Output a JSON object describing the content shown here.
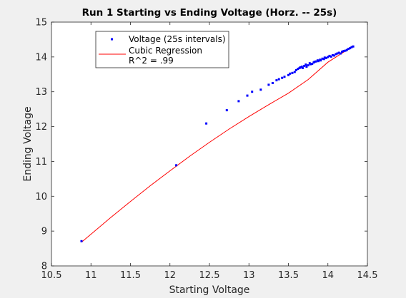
{
  "chart_data": {
    "type": "scatter",
    "title": "Run 1 Starting vs Ending Voltage (Horz. -- 25s)",
    "xlabel": "Starting Voltage",
    "ylabel": "Ending Voltage",
    "xlim": [
      10.5,
      14.5
    ],
    "ylim": [
      8,
      15
    ],
    "xticks": [
      10.5,
      11,
      11.5,
      12,
      12.5,
      13,
      13.5,
      14,
      14.5
    ],
    "yticks": [
      8,
      9,
      10,
      11,
      12,
      13,
      14,
      15
    ],
    "grid": false,
    "legend_position": "top-left",
    "series": [
      {
        "name": "Voltage (25s intervals)",
        "kind": "scatter",
        "color": "#0000ff",
        "x": [
          10.88,
          12.08,
          12.46,
          12.72,
          12.87,
          12.98,
          13.04,
          13.15,
          13.25,
          13.3,
          13.35,
          13.38,
          13.42,
          13.45,
          13.5,
          13.52,
          13.55,
          13.58,
          13.6,
          13.62,
          13.64,
          13.65,
          13.67,
          13.68,
          13.7,
          13.72,
          13.73,
          13.75,
          13.77,
          13.78,
          13.8,
          13.82,
          13.83,
          13.85,
          13.87,
          13.88,
          13.9,
          13.91,
          13.93,
          13.95,
          13.96,
          13.98,
          14.0,
          14.02,
          14.04,
          14.06,
          14.08,
          14.1,
          14.12,
          14.14,
          14.16,
          14.18,
          14.2,
          14.22,
          14.24,
          14.26,
          14.28,
          14.3,
          14.32
        ],
        "y": [
          8.71,
          10.89,
          12.09,
          12.47,
          12.73,
          12.89,
          13.0,
          13.06,
          13.2,
          13.25,
          13.33,
          13.36,
          13.4,
          13.43,
          13.48,
          13.52,
          13.54,
          13.57,
          13.62,
          13.66,
          13.68,
          13.7,
          13.72,
          13.68,
          13.74,
          13.78,
          13.72,
          13.76,
          13.82,
          13.79,
          13.8,
          13.84,
          13.86,
          13.87,
          13.9,
          13.88,
          13.92,
          13.9,
          13.95,
          13.94,
          13.98,
          13.97,
          14.0,
          14.03,
          14.01,
          14.05,
          14.04,
          14.08,
          14.1,
          14.12,
          14.1,
          14.15,
          14.17,
          14.18,
          14.2,
          14.23,
          14.25,
          14.28,
          14.3
        ]
      },
      {
        "name": "Cubic Regression",
        "kind": "line",
        "color": "#ff0000",
        "x": [
          10.88,
          11.0,
          11.25,
          11.5,
          11.75,
          12.0,
          12.25,
          12.5,
          12.75,
          13.0,
          13.25,
          13.5,
          13.75,
          14.0,
          14.25,
          14.32
        ],
        "y": [
          8.68,
          8.91,
          9.39,
          9.85,
          10.3,
          10.73,
          11.15,
          11.55,
          11.93,
          12.29,
          12.63,
          12.96,
          13.35,
          13.85,
          14.21,
          14.32
        ]
      }
    ],
    "legend_extra": "R^2 = .99"
  }
}
